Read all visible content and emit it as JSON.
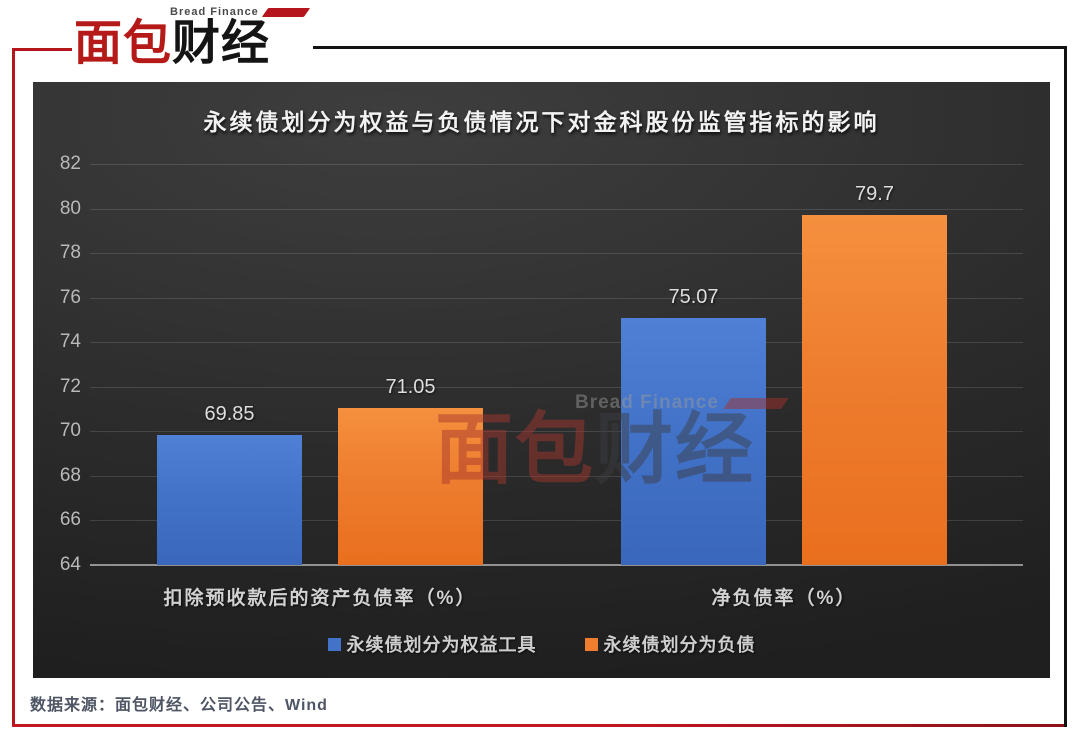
{
  "brand": {
    "subtitle": "Bread Finance",
    "name_red": "面包",
    "name_black": "财经"
  },
  "watermark": {
    "subtitle": "Bread Finance",
    "name_red": "面包",
    "name_black": "财经"
  },
  "chart_data": {
    "type": "bar",
    "title": "永续债划分为权益与负债情况下对金科股份监管指标的影响",
    "categories": [
      "扣除预收款后的资产负债率（%）",
      "净负债率（%）"
    ],
    "series": [
      {
        "name": "永续债划分为权益工具",
        "color": "#4273C8",
        "color_light": "#4F80D6",
        "color_dark": "#3A67BC",
        "values": [
          69.85,
          75.07
        ],
        "labels": [
          "69.85",
          "75.07"
        ]
      },
      {
        "name": "永续债划分为负债",
        "color": "#EE7D2F",
        "color_light": "#F5903F",
        "color_dark": "#E96F1E",
        "values": [
          71.05,
          79.7
        ],
        "labels": [
          "71.05",
          "79.7"
        ]
      }
    ],
    "ylim": [
      64,
      82
    ],
    "yticks": [
      64,
      66,
      68,
      70,
      72,
      74,
      76,
      78,
      80,
      82
    ],
    "grid": true,
    "legend_position": "bottom"
  },
  "footer": {
    "source": "数据来源：面包财经、公司公告、Wind"
  }
}
